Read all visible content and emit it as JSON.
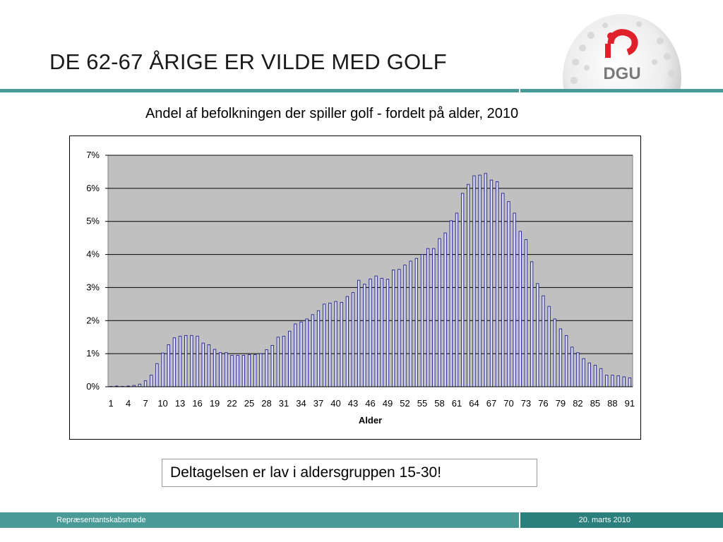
{
  "slide": {
    "title": "DE 62-67 ÅRIGE ER VILDE MED GOLF",
    "logo_text": "DGU",
    "note": "Deltagelsen er lav i aldersgruppen 15-30!"
  },
  "footer": {
    "left": "Repræsentantskabsmøde",
    "right": "20. marts 2010"
  },
  "colors": {
    "accent": "#4a9b98",
    "accent_dark": "#2b7f7c",
    "plot_bg": "#c0c0c0",
    "bar_fill": "#dcdcf5",
    "bar_stroke": "#20208a",
    "logo_red": "#e0202a"
  },
  "chart_data": {
    "type": "bar",
    "title": "Andel af befolkningen der spiller golf - fordelt på alder, 2010",
    "xlabel": "Alder",
    "ylabel": "",
    "ylim": [
      0,
      0.07
    ],
    "yticks": [
      0,
      0.01,
      0.02,
      0.03,
      0.04,
      0.05,
      0.06,
      0.07
    ],
    "ytick_labels": [
      "0%",
      "1%",
      "2%",
      "3%",
      "4%",
      "5%",
      "6%",
      "7%"
    ],
    "xtick_labels": [
      "1",
      "4",
      "7",
      "10",
      "13",
      "16",
      "19",
      "22",
      "25",
      "28",
      "31",
      "34",
      "37",
      "40",
      "43",
      "46",
      "49",
      "52",
      "55",
      "58",
      "61",
      "64",
      "67",
      "70",
      "73",
      "76",
      "79",
      "82",
      "85",
      "88",
      "91"
    ],
    "grid": true,
    "legend": "none",
    "categories": [
      1,
      2,
      3,
      4,
      5,
      6,
      7,
      8,
      9,
      10,
      11,
      12,
      13,
      14,
      15,
      16,
      17,
      18,
      19,
      20,
      21,
      22,
      23,
      24,
      25,
      26,
      27,
      28,
      29,
      30,
      31,
      32,
      33,
      34,
      35,
      36,
      37,
      38,
      39,
      40,
      41,
      42,
      43,
      44,
      45,
      46,
      47,
      48,
      49,
      50,
      51,
      52,
      53,
      54,
      55,
      56,
      57,
      58,
      59,
      60,
      61,
      62,
      63,
      64,
      65,
      66,
      67,
      68,
      69,
      70,
      71,
      72,
      73,
      74,
      75,
      76,
      77,
      78,
      79,
      80,
      81,
      82,
      83,
      84,
      85,
      86,
      87,
      88,
      89,
      90,
      91
    ],
    "values": [
      0.0001,
      0.0002,
      0.0001,
      0.0002,
      0.0004,
      0.0008,
      0.0018,
      0.0035,
      0.007,
      0.0102,
      0.0127,
      0.0148,
      0.0153,
      0.0155,
      0.0155,
      0.0153,
      0.0132,
      0.0127,
      0.0113,
      0.0103,
      0.0103,
      0.0095,
      0.0095,
      0.0095,
      0.0097,
      0.0097,
      0.01,
      0.0112,
      0.0125,
      0.015,
      0.0153,
      0.0168,
      0.019,
      0.0196,
      0.0205,
      0.0218,
      0.023,
      0.025,
      0.0253,
      0.0258,
      0.0255,
      0.0273,
      0.0285,
      0.0322,
      0.031,
      0.0326,
      0.0335,
      0.0328,
      0.0325,
      0.0353,
      0.0355,
      0.0368,
      0.038,
      0.0388,
      0.04,
      0.0418,
      0.0418,
      0.0448,
      0.0465,
      0.0502,
      0.0525,
      0.0585,
      0.0612,
      0.0638,
      0.064,
      0.0645,
      0.0625,
      0.062,
      0.0585,
      0.056,
      0.0525,
      0.047,
      0.0445,
      0.0378,
      0.0312,
      0.0275,
      0.0243,
      0.0205,
      0.0175,
      0.0155,
      0.012,
      0.0103,
      0.0085,
      0.0072,
      0.0065,
      0.0055,
      0.0035,
      0.0035,
      0.0033,
      0.003,
      0.0027
    ]
  }
}
